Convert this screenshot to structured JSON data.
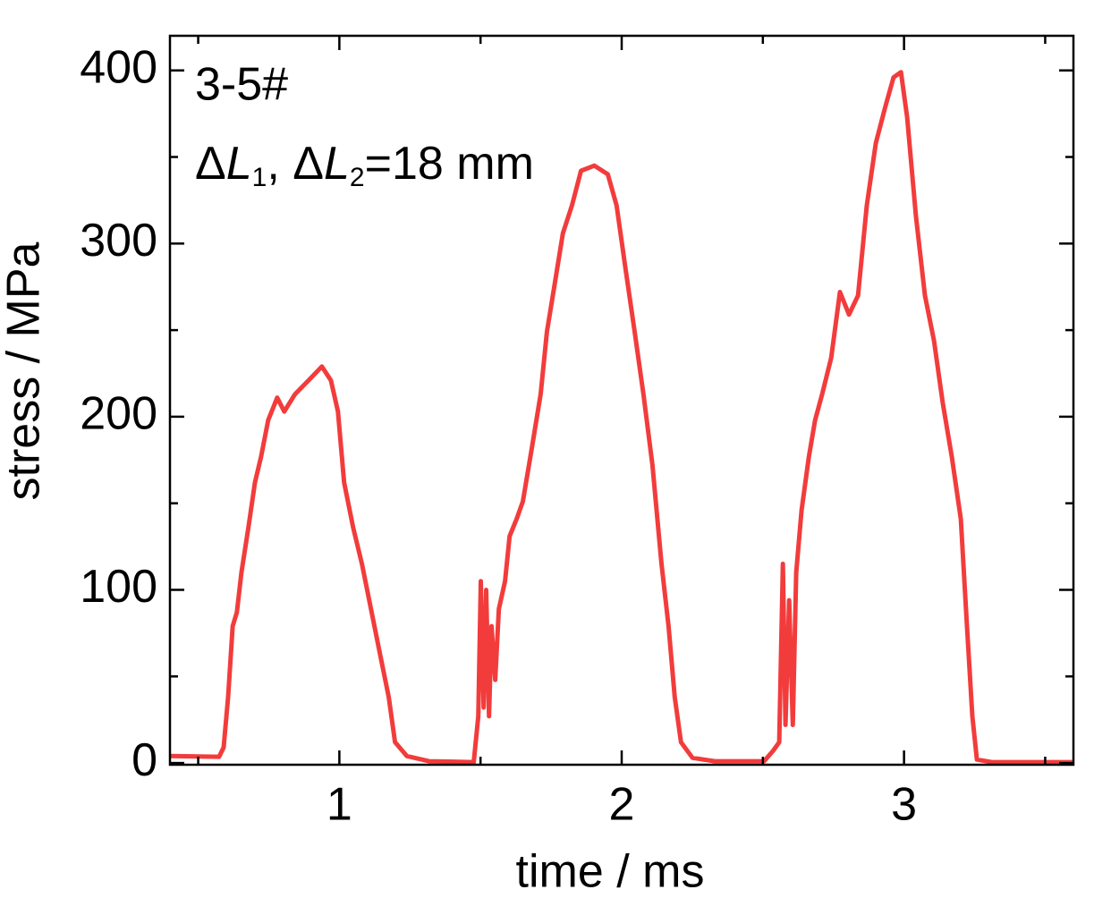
{
  "chart_data": {
    "type": "line",
    "xlabel": "time / ms",
    "ylabel": "stress / MPa",
    "annotations": [
      "3-5#",
      [
        "Δ",
        "L",
        "1",
        ", Δ",
        "L",
        "2",
        "=18 mm"
      ]
    ],
    "xlim": [
      0.4,
      3.6
    ],
    "ylim": [
      -1,
      420
    ],
    "xticks": [
      1,
      2,
      3
    ],
    "yticks": [
      0,
      100,
      200,
      300,
      400
    ],
    "xminorticks": [
      0.5,
      1.5,
      2.5,
      3.5
    ],
    "yminorticks": [
      50,
      150,
      250,
      350
    ],
    "x": [
      0.4,
      0.574,
      0.59,
      0.606,
      0.622,
      0.637,
      0.653,
      0.678,
      0.701,
      0.723,
      0.748,
      0.78,
      0.805,
      0.843,
      0.891,
      0.938,
      0.97,
      0.995,
      1.017,
      1.049,
      1.08,
      1.112,
      1.144,
      1.175,
      1.197,
      1.239,
      1.318,
      1.476,
      1.492,
      1.501,
      1.511,
      1.52,
      1.53,
      1.539,
      1.552,
      1.565,
      1.587,
      1.603,
      1.628,
      1.65,
      1.682,
      1.713,
      1.735,
      1.761,
      1.792,
      1.824,
      1.856,
      1.903,
      1.951,
      1.982,
      2.014,
      2.046,
      2.077,
      2.109,
      2.141,
      2.166,
      2.188,
      2.21,
      2.251,
      2.33,
      2.504,
      2.536,
      2.558,
      2.571,
      2.58,
      2.593,
      2.606,
      2.618,
      2.637,
      2.663,
      2.685,
      2.71,
      2.742,
      2.773,
      2.805,
      2.837,
      2.868,
      2.9,
      2.932,
      2.963,
      2.989,
      3.011,
      3.042,
      3.074,
      3.106,
      3.137,
      3.169,
      3.201,
      3.223,
      3.242,
      3.258,
      3.311,
      3.596
    ],
    "series": [
      {
        "name": "3-5#",
        "color": "#f23c3c",
        "values": [
          4,
          3.6,
          9,
          38,
          79,
          87,
          110,
          136,
          162,
          177,
          198,
          211,
          203,
          213,
          221,
          229,
          221,
          203,
          162,
          136,
          115,
          89,
          63,
          38,
          12,
          4,
          1,
          0.5,
          27,
          105,
          32,
          100,
          27,
          79,
          48,
          89,
          105,
          131,
          141,
          151,
          182,
          213,
          249,
          275,
          306,
          322,
          342,
          345,
          340,
          322,
          285,
          249,
          213,
          172,
          115,
          79,
          38,
          12,
          3,
          1,
          1,
          7,
          12,
          115,
          22,
          94,
          22,
          110,
          146,
          177,
          198,
          213,
          234,
          272,
          259,
          270,
          322,
          358,
          378,
          396,
          399,
          373,
          316,
          270,
          244,
          208,
          177,
          141,
          79,
          27,
          2,
          0.5,
          0.5
        ]
      }
    ]
  }
}
